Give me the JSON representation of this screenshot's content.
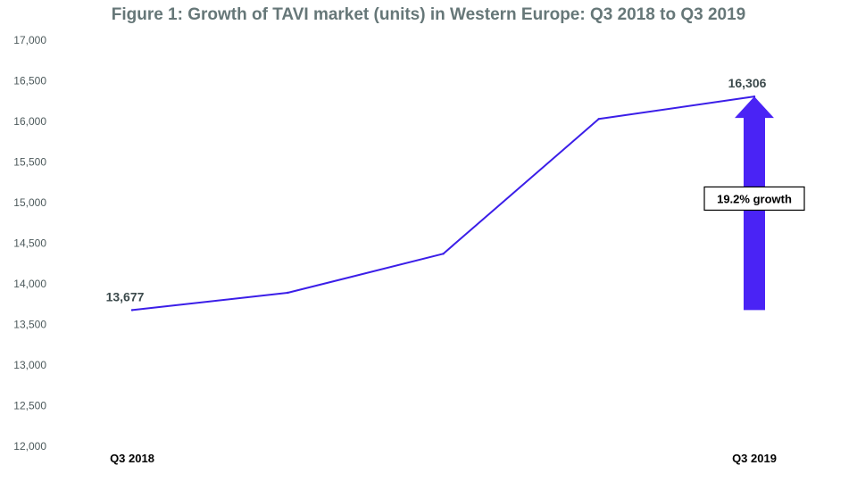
{
  "chart_data": {
    "type": "line",
    "title": "Figure 1: Growth of TAVI market (units) in Western Europe: Q3 2018 to Q3 2019",
    "xlabel": "",
    "ylabel": "",
    "categories": [
      "Q3 2018",
      "",
      "",
      "",
      "Q3 2019"
    ],
    "series": [
      {
        "values": [
          13677,
          13890,
          14370,
          16030,
          16306
        ]
      }
    ],
    "ylim": [
      12000,
      17000
    ],
    "yticks": [
      12000,
      12500,
      13000,
      13500,
      14000,
      14500,
      15000,
      15500,
      16000,
      16500,
      17000
    ],
    "ytick_labels": [
      "12,000",
      "12,500",
      "13,000",
      "13,500",
      "14,000",
      "14,500",
      "15,000",
      "15,500",
      "16,000",
      "16,500",
      "17,000"
    ],
    "data_labels": [
      {
        "index": 0,
        "text": "13,677"
      },
      {
        "index": 4,
        "text": "16,306"
      }
    ],
    "annotation": {
      "text": "19.2% growth",
      "arrow_from": 13677,
      "arrow_to": 16306,
      "category_index": 4
    },
    "grid": false,
    "legend": "none",
    "colors": {
      "line": "#3b1ee8",
      "arrow": "#4a23f5",
      "title": "#667778",
      "ytick": "#4d5a5c",
      "data_label": "#3c4a4c"
    }
  }
}
